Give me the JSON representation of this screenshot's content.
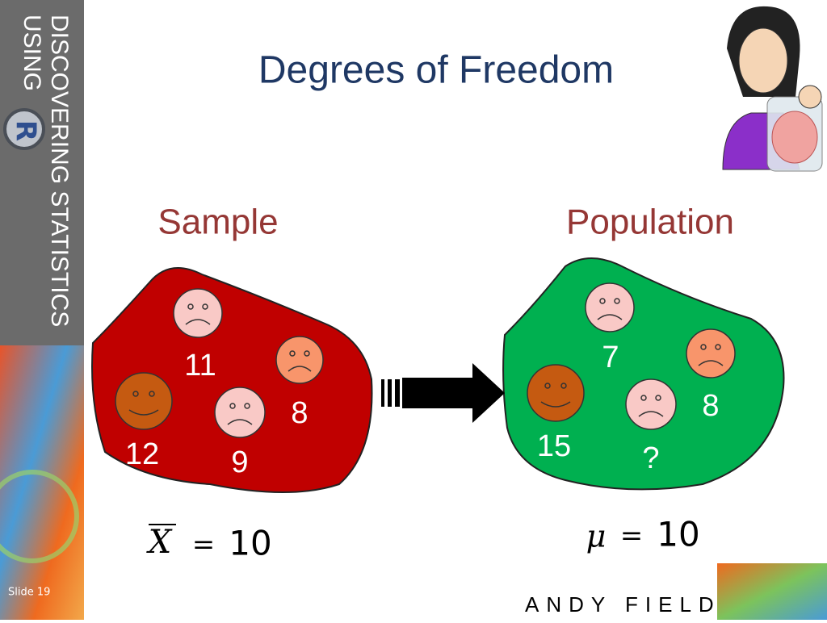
{
  "banner": {
    "line1": "DISCOVERING STATISTICS",
    "line2": "USING",
    "logo": "R"
  },
  "header": {
    "title": "Degrees of Freedom"
  },
  "sample": {
    "label": "Sample",
    "values": [
      "11",
      "8",
      "12",
      "9"
    ],
    "symbol": "X",
    "equals": "=",
    "mean": "10"
  },
  "population": {
    "label": "Population",
    "values": [
      "7",
      "8",
      "15",
      "?"
    ],
    "symbol": "μ",
    "equals": "=",
    "mean": "10"
  },
  "footer": {
    "slide": "Slide 19",
    "author": "ANDY FIELD"
  }
}
